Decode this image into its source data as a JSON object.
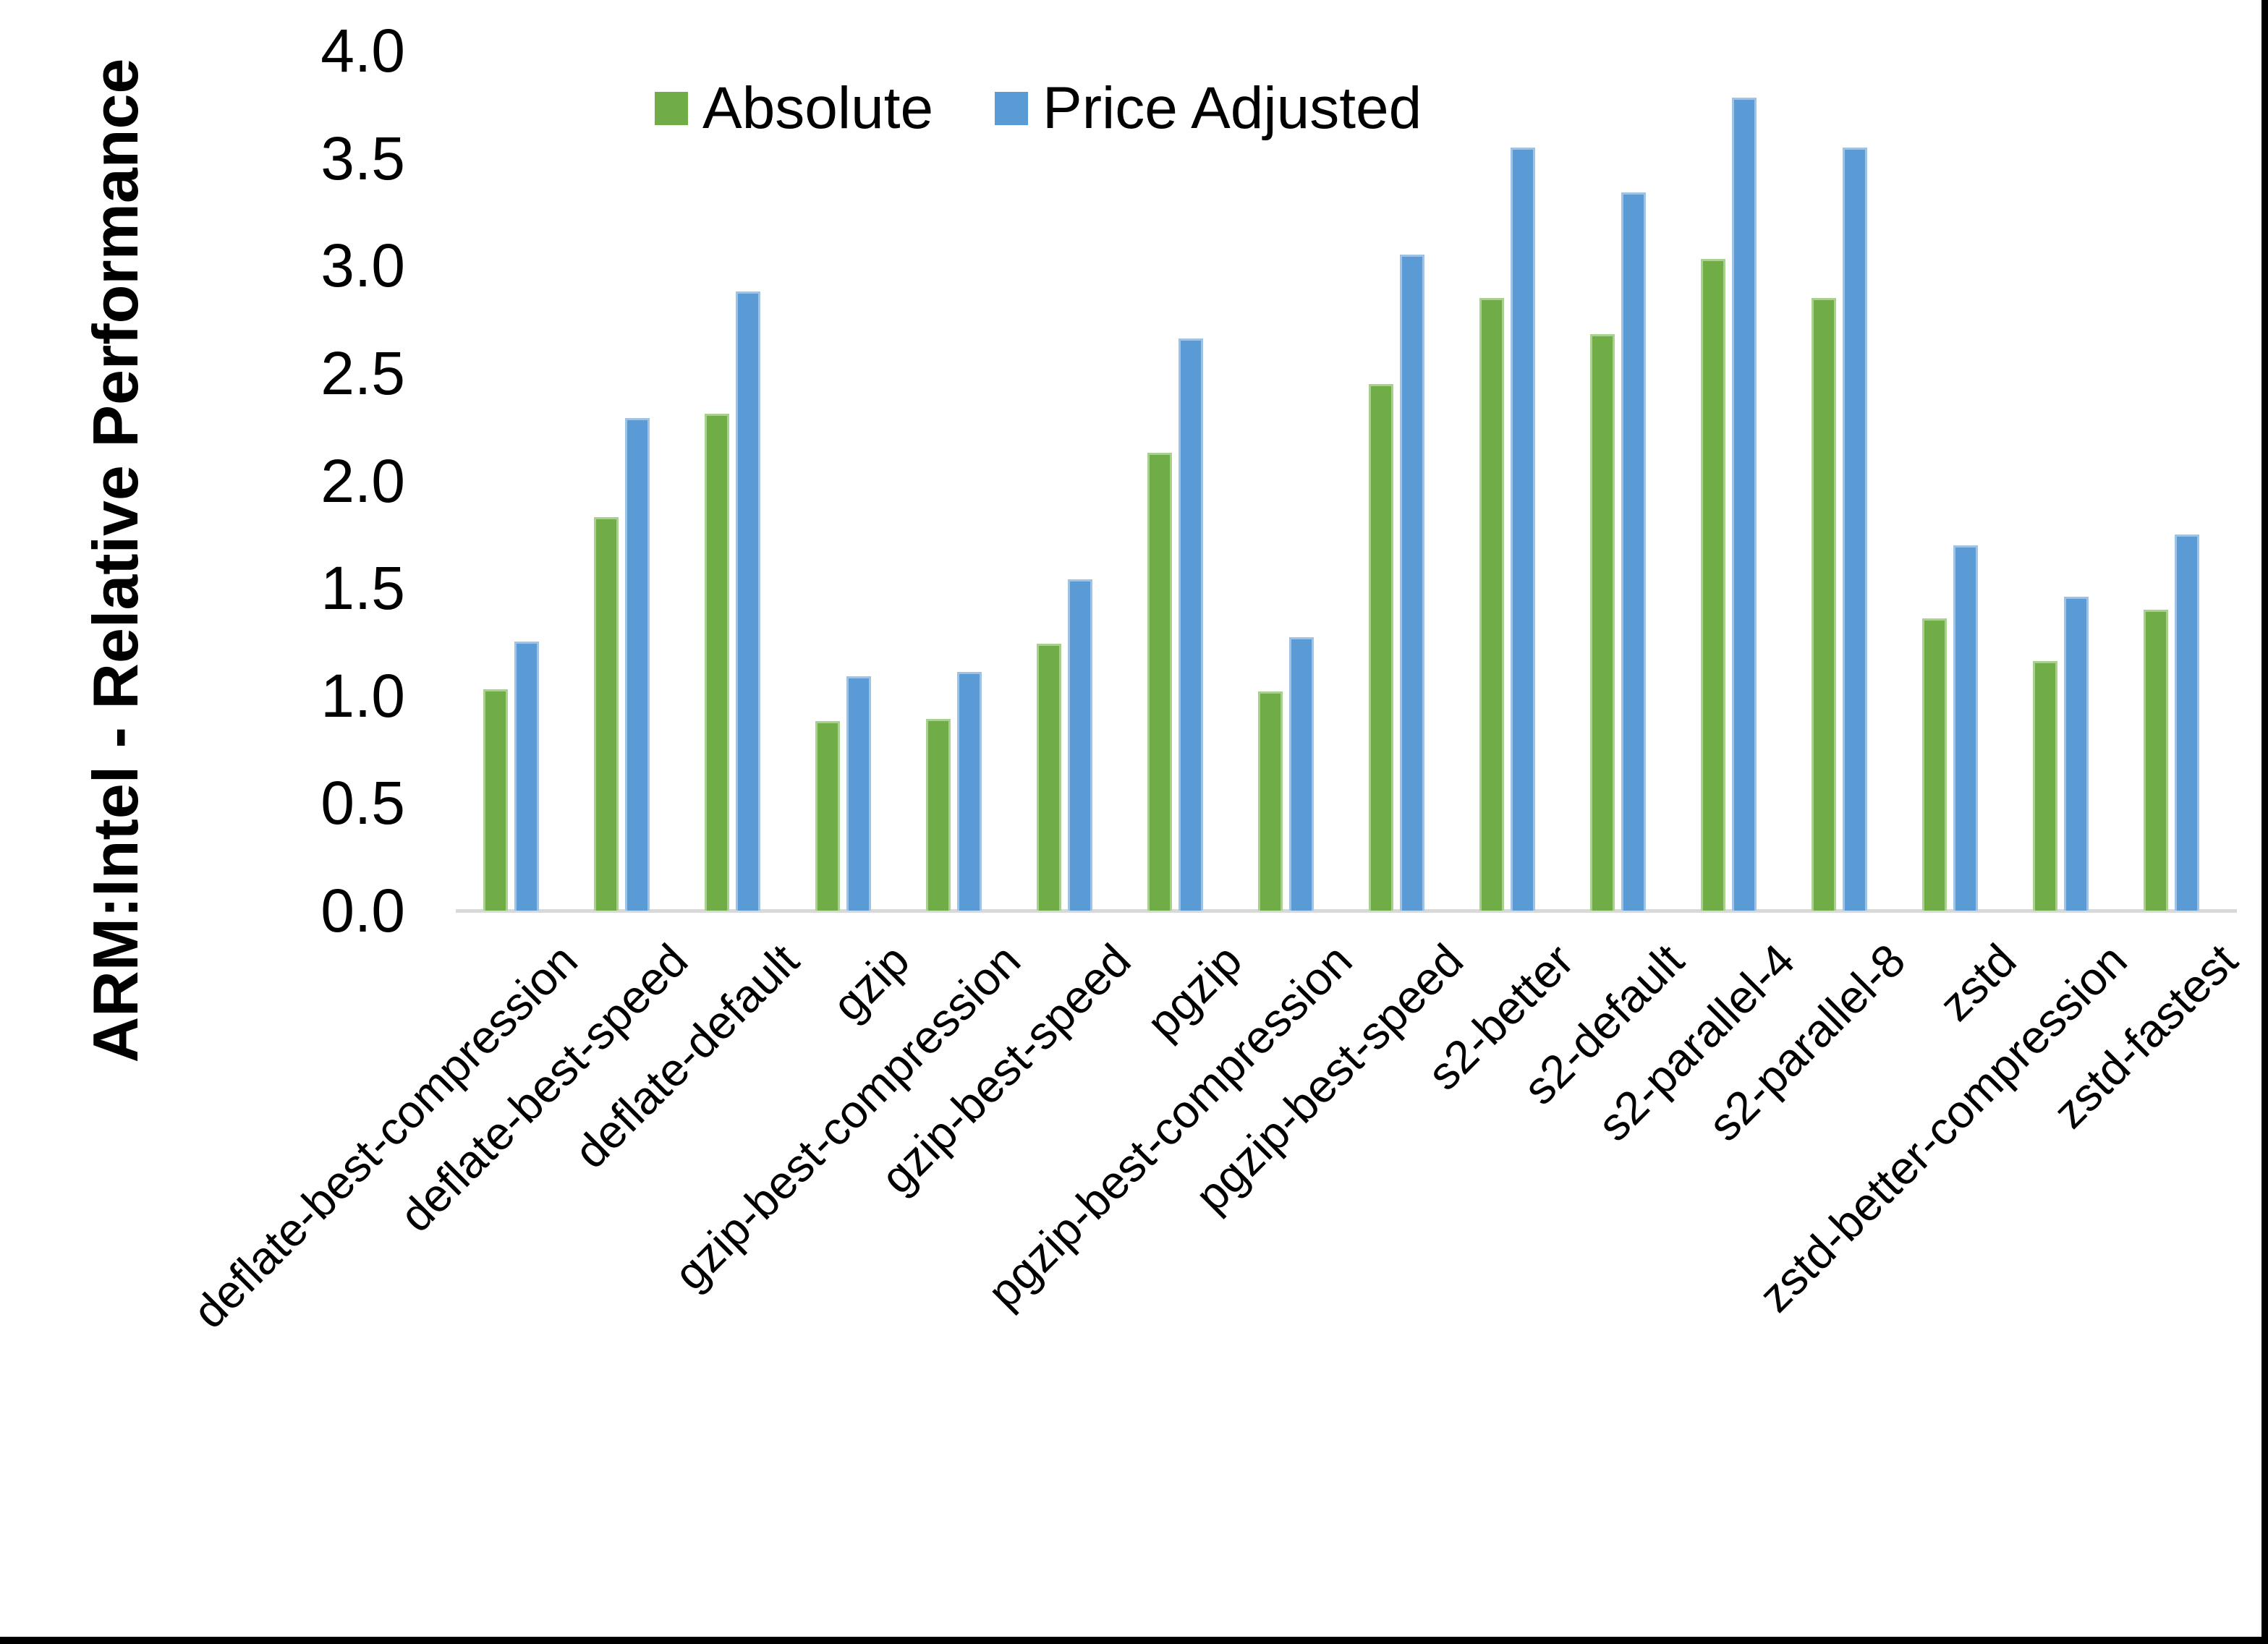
{
  "chart_data": {
    "type": "bar",
    "title": "",
    "ylabel": "ARM:Intel - Relative Performance",
    "xlabel": "",
    "ylim": [
      0.0,
      4.0
    ],
    "ytick_step": 0.5,
    "yticks": [
      "0.0",
      "0.5",
      "1.0",
      "1.5",
      "2.0",
      "2.5",
      "3.0",
      "3.5",
      "4.0"
    ],
    "grid": false,
    "legend_position": "top",
    "categories": [
      "deflate-best-compression",
      "deflate-best-speed",
      "deflate-default",
      "gzip",
      "gzip-best-compression",
      "gzip-best-speed",
      "pgzip",
      "pgzip-best-compression",
      "pgzip-best-speed",
      "s2-better",
      "s2-default",
      "s2-parallel-4",
      "s2-parallel-8",
      "zstd",
      "zstd-better-compression",
      "zstd-fastest"
    ],
    "series": [
      {
        "name": "Absolute",
        "color": "#70AD47",
        "border_color": "#A9D18E",
        "values": [
          1.03,
          1.83,
          2.31,
          0.88,
          0.89,
          1.24,
          2.13,
          1.02,
          2.45,
          2.85,
          2.68,
          3.03,
          2.85,
          1.36,
          1.16,
          1.4
        ]
      },
      {
        "name": "Price Adjusted",
        "color": "#5B9BD5",
        "border_color": "#9DC3E6",
        "values": [
          1.25,
          2.29,
          2.88,
          1.09,
          1.11,
          1.54,
          2.66,
          1.27,
          3.05,
          3.55,
          3.34,
          3.78,
          3.55,
          1.7,
          1.46,
          1.75
        ]
      }
    ]
  },
  "colors": {
    "background": "#FFFFFF",
    "axis_line": "#D9D9D9",
    "text": "#000000",
    "frame": "#000000"
  }
}
